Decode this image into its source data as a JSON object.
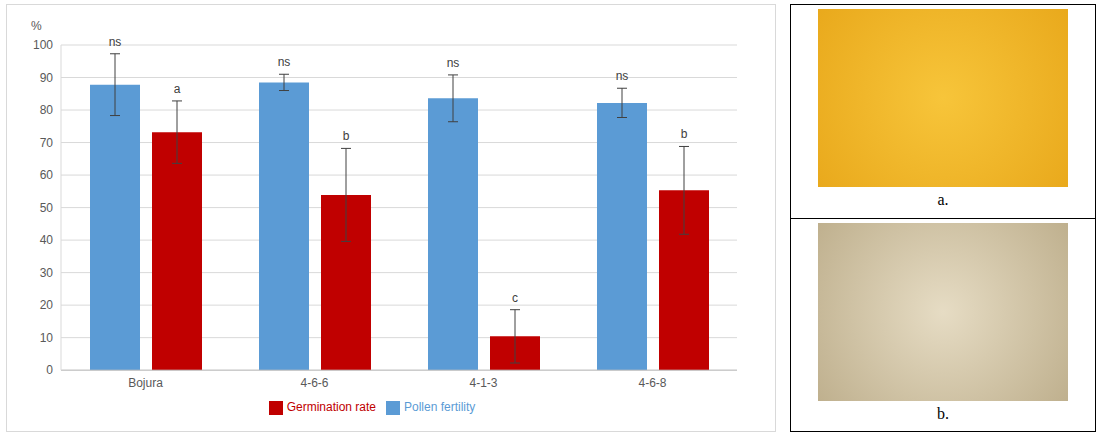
{
  "chart_data": {
    "type": "bar",
    "y_label": "%",
    "categories": [
      "Bojura",
      "4-6-6",
      "4-1-3",
      "4-6-8"
    ],
    "series": [
      {
        "name": "Pollen fertility",
        "color": "#5b9bd5",
        "values": [
          87.8,
          88.5,
          83.6,
          82.2
        ],
        "errors": [
          9.5,
          2.5,
          7.2,
          4.5
        ],
        "annotations": [
          "ns",
          "ns",
          "ns",
          "ns"
        ]
      },
      {
        "name": "Germination rate",
        "color": "#c00000",
        "values": [
          73.2,
          53.9,
          10.4,
          55.3
        ],
        "errors": [
          9.6,
          14.3,
          8.2,
          13.5
        ],
        "annotations": [
          "a",
          "b",
          "c",
          "b"
        ]
      }
    ],
    "ylim": [
      0,
      100
    ],
    "yticks": [
      0,
      10,
      20,
      30,
      40,
      50,
      60,
      70,
      80,
      90,
      100
    ],
    "grid": true,
    "legend": "bottom"
  },
  "panels": [
    "a.",
    "b."
  ]
}
